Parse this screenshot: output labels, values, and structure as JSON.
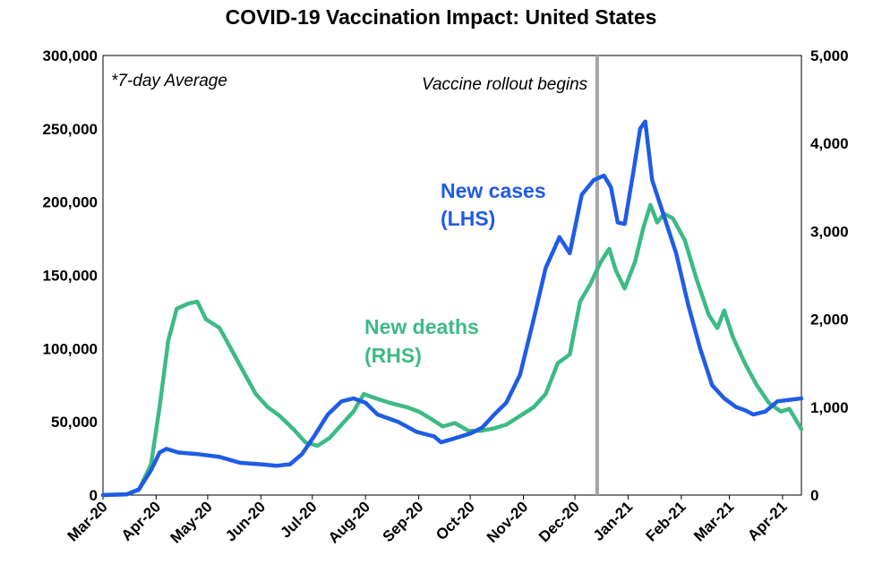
{
  "chart_data": {
    "type": "line",
    "title": "COVID-19 Vaccination Impact: United States",
    "x_ticks": [
      "Mar-20",
      "Apr-20",
      "May-20",
      "Jun-20",
      "Jul-20",
      "Aug-20",
      "Sep-20",
      "Oct-20",
      "Nov-20",
      "Dec-20",
      "Jan-21",
      "Feb-21",
      "Mar-21",
      "Apr-21"
    ],
    "y_left_ticks": [
      "0",
      "50,000",
      "100,000",
      "150,000",
      "200,000",
      "250,000",
      "300,000"
    ],
    "y_right_ticks": [
      "0",
      "1,000",
      "2,000",
      "3,000",
      "4,000",
      "5,000"
    ],
    "y_left_range": [
      0,
      300000
    ],
    "y_right_range": [
      0,
      5000
    ],
    "x_range": [
      "2020-03-01",
      "2021-04-12"
    ],
    "grid": false,
    "annotations": {
      "average_note": "*7-day Average",
      "vaccine_line_label": "Vaccine rollout begins",
      "vaccine_line_date": "2020-12-14"
    },
    "series": [
      {
        "name": "New cases (LHS)",
        "label_lines": [
          "New cases",
          "(LHS)"
        ],
        "axis": "left",
        "color": "#1f5ce6",
        "points": [
          [
            "2020-03-01",
            0
          ],
          [
            "2020-03-15",
            500
          ],
          [
            "2020-03-22",
            4000
          ],
          [
            "2020-03-29",
            17000
          ],
          [
            "2020-04-03",
            29000
          ],
          [
            "2020-04-07",
            31500
          ],
          [
            "2020-04-14",
            29000
          ],
          [
            "2020-04-25",
            28000
          ],
          [
            "2020-05-08",
            26000
          ],
          [
            "2020-05-20",
            22000
          ],
          [
            "2020-06-01",
            21000
          ],
          [
            "2020-06-10",
            20000
          ],
          [
            "2020-06-18",
            21000
          ],
          [
            "2020-06-25",
            28000
          ],
          [
            "2020-07-02",
            40000
          ],
          [
            "2020-07-10",
            55000
          ],
          [
            "2020-07-18",
            64000
          ],
          [
            "2020-07-25",
            66000
          ],
          [
            "2020-08-01",
            63000
          ],
          [
            "2020-08-08",
            55000
          ],
          [
            "2020-08-20",
            50000
          ],
          [
            "2020-08-31",
            43000
          ],
          [
            "2020-09-10",
            40000
          ],
          [
            "2020-09-14",
            36000
          ],
          [
            "2020-09-20",
            38000
          ],
          [
            "2020-10-01",
            42000
          ],
          [
            "2020-10-08",
            46000
          ],
          [
            "2020-10-15",
            55000
          ],
          [
            "2020-10-22",
            63000
          ],
          [
            "2020-10-30",
            82000
          ],
          [
            "2020-11-07",
            120000
          ],
          [
            "2020-11-14",
            155000
          ],
          [
            "2020-11-22",
            176000
          ],
          [
            "2020-11-28",
            165000
          ],
          [
            "2020-12-05",
            205000
          ],
          [
            "2020-12-12",
            215000
          ],
          [
            "2020-12-18",
            218000
          ],
          [
            "2020-12-22",
            210000
          ],
          [
            "2020-12-26",
            186000
          ],
          [
            "2020-12-30",
            185000
          ],
          [
            "2021-01-04",
            220000
          ],
          [
            "2021-01-08",
            250000
          ],
          [
            "2021-01-11",
            255000
          ],
          [
            "2021-01-15",
            215000
          ],
          [
            "2021-01-22",
            190000
          ],
          [
            "2021-01-29",
            165000
          ],
          [
            "2021-02-05",
            130000
          ],
          [
            "2021-02-12",
            100000
          ],
          [
            "2021-02-19",
            75000
          ],
          [
            "2021-02-26",
            66000
          ],
          [
            "2021-03-05",
            60000
          ],
          [
            "2021-03-10",
            58000
          ],
          [
            "2021-03-15",
            55000
          ],
          [
            "2021-03-22",
            57000
          ],
          [
            "2021-03-29",
            64000
          ],
          [
            "2021-04-05",
            65000
          ],
          [
            "2021-04-12",
            66000
          ]
        ]
      },
      {
        "name": "New deaths (RHS)",
        "label_lines": [
          "New deaths",
          "(RHS)"
        ],
        "axis": "right",
        "color": "#3dba85",
        "points": [
          [
            "2020-03-01",
            0
          ],
          [
            "2020-03-15",
            10
          ],
          [
            "2020-03-22",
            60
          ],
          [
            "2020-03-29",
            350
          ],
          [
            "2020-04-03",
            1000
          ],
          [
            "2020-04-08",
            1750
          ],
          [
            "2020-04-13",
            2120
          ],
          [
            "2020-04-20",
            2180
          ],
          [
            "2020-04-25",
            2200
          ],
          [
            "2020-04-30",
            2000
          ],
          [
            "2020-05-08",
            1900
          ],
          [
            "2020-05-15",
            1650
          ],
          [
            "2020-05-22",
            1400
          ],
          [
            "2020-05-29",
            1150
          ],
          [
            "2020-06-05",
            1000
          ],
          [
            "2020-06-12",
            900
          ],
          [
            "2020-06-20",
            750
          ],
          [
            "2020-06-27",
            600
          ],
          [
            "2020-07-04",
            560
          ],
          [
            "2020-07-11",
            650
          ],
          [
            "2020-07-18",
            800
          ],
          [
            "2020-07-25",
            950
          ],
          [
            "2020-07-31",
            1150
          ],
          [
            "2020-08-07",
            1100
          ],
          [
            "2020-08-15",
            1050
          ],
          [
            "2020-08-25",
            1000
          ],
          [
            "2020-09-01",
            950
          ],
          [
            "2020-09-08",
            870
          ],
          [
            "2020-09-15",
            780
          ],
          [
            "2020-09-22",
            820
          ],
          [
            "2020-09-30",
            730
          ],
          [
            "2020-10-07",
            730
          ],
          [
            "2020-10-15",
            760
          ],
          [
            "2020-10-22",
            800
          ],
          [
            "2020-10-30",
            900
          ],
          [
            "2020-11-07",
            1000
          ],
          [
            "2020-11-14",
            1150
          ],
          [
            "2020-11-21",
            1500
          ],
          [
            "2020-11-28",
            1600
          ],
          [
            "2020-12-04",
            2200
          ],
          [
            "2020-12-10",
            2400
          ],
          [
            "2020-12-16",
            2650
          ],
          [
            "2020-12-21",
            2800
          ],
          [
            "2020-12-25",
            2550
          ],
          [
            "2020-12-30",
            2350
          ],
          [
            "2021-01-05",
            2650
          ],
          [
            "2021-01-10",
            3050
          ],
          [
            "2021-01-14",
            3300
          ],
          [
            "2021-01-18",
            3100
          ],
          [
            "2021-01-22",
            3200
          ],
          [
            "2021-01-27",
            3150
          ],
          [
            "2021-02-03",
            2900
          ],
          [
            "2021-02-10",
            2450
          ],
          [
            "2021-02-17",
            2050
          ],
          [
            "2021-02-22",
            1900
          ],
          [
            "2021-02-26",
            2100
          ],
          [
            "2021-03-03",
            1800
          ],
          [
            "2021-03-10",
            1500
          ],
          [
            "2021-03-17",
            1250
          ],
          [
            "2021-03-24",
            1050
          ],
          [
            "2021-03-31",
            950
          ],
          [
            "2021-04-05",
            980
          ],
          [
            "2021-04-12",
            750
          ]
        ]
      }
    ]
  }
}
